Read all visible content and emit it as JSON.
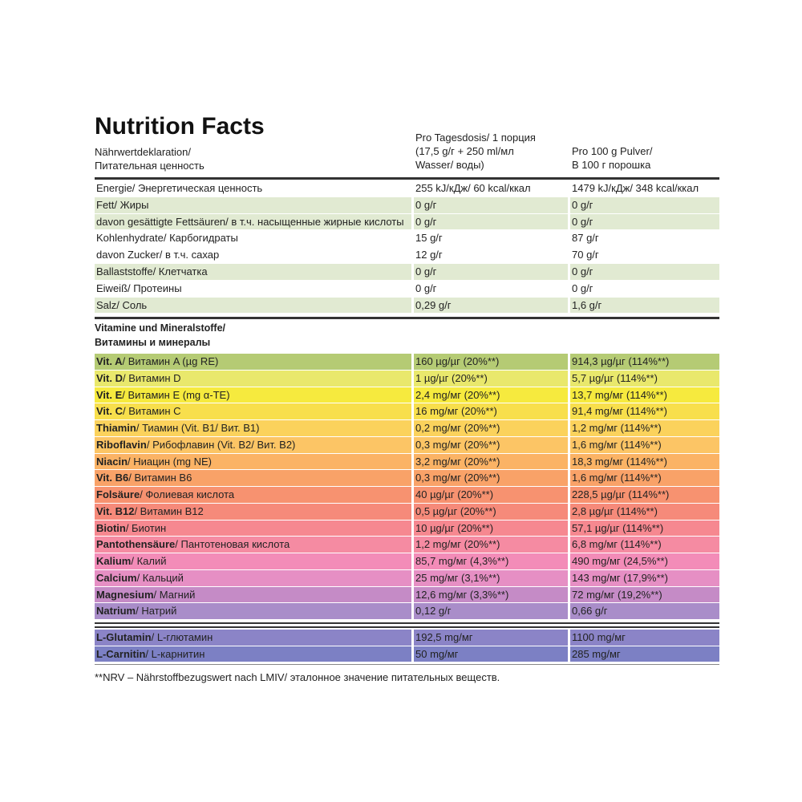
{
  "header": {
    "title": "Nutrition Facts",
    "label_de": "Nährwertdeklaration/",
    "label_ru": "Питательная ценность",
    "col1": [
      "Pro Tagesdosis/ 1 порция",
      "(17,5 g/г + 250 ml/мл",
      "Wasser/ воды)"
    ],
    "col2": [
      "Pro 100 g Pulver/",
      "В 100 г порошка"
    ]
  },
  "nutrients": [
    {
      "name": "Energie/ Энергетическая ценность",
      "per_serving": "255 kJ/кДж/ 60 kcal/ккал",
      "per_100g": "1479 kJ/кДж/ 348 kcal/ккал",
      "color": "#ffffff"
    },
    {
      "name": "Fett/ Жиры",
      "per_serving": "0 g/г",
      "per_100g": "0 g/г",
      "color": "#e1ead2"
    },
    {
      "name": "davon gesättigte Fettsäuren/ в т.ч. насыщенные жирные кислоты",
      "per_serving": "0 g/г",
      "per_100g": "0 g/г",
      "color": "#e1ead2"
    },
    {
      "name": "Kohlenhydrate/ Карбогидраты",
      "per_serving": "15 g/г",
      "per_100g": "87 g/г",
      "color": "#ffffff"
    },
    {
      "name": "davon Zucker/ в т.ч. сахар",
      "per_serving": "12 g/г",
      "per_100g": "70 g/г",
      "color": "#ffffff"
    },
    {
      "name": "Ballaststoffe/ Клетчатка",
      "per_serving": "0 g/г",
      "per_100g": "0 g/г",
      "color": "#e1ead2"
    },
    {
      "name": "Eiweiß/ Протеины",
      "per_serving": "0 g/г",
      "per_100g": "0 g/г",
      "color": "#ffffff"
    },
    {
      "name": "Salz/ Соль",
      "per_serving": "0,29 g/г",
      "per_100g": "1,6 g/г",
      "color": "#e1ead2"
    }
  ],
  "vitamins_header": [
    "Vitamine und Mineralstoffe/",
    "Витамины и минералы"
  ],
  "vitamins": [
    {
      "name_bold": "Vit. A",
      "name": "/ Витамин A (µg RE)",
      "per_serving": "160 µg/µг (20%**)",
      "per_100g": "914,3 µg/µг (114%**)",
      "color": "#b5cb74"
    },
    {
      "name_bold": "Vit. D",
      "name": "/ Витамин D",
      "per_serving": "1 µg/µг (20%**)",
      "per_100g": "5,7 µg/µг (114%**)",
      "color": "#e9e86c"
    },
    {
      "name_bold": "Vit. E",
      "name": "/ Витамин E (mg α-TE)",
      "per_serving": "2,4 mg/мг (20%**)",
      "per_100g": "13,7 mg/мг (114%**)",
      "color": "#f6ea3e"
    },
    {
      "name_bold": "Vit. C",
      "name": "/ Витамин C",
      "per_serving": "16 mg/мг (20%**)",
      "per_100g": "91,4 mg/мг (114%**)",
      "color": "#f8df4c"
    },
    {
      "name_bold": "Thiamin",
      "name": "/ Тиамин (Vit. B1/ Вит. B1)",
      "per_serving": "0,2 mg/мг (20%**)",
      "per_100g": "1,2 mg/мг (114%**)",
      "color": "#fbd25c"
    },
    {
      "name_bold": "Riboflavin",
      "name": "/ Рибофлавин (Vit. B2/ Вит. B2)",
      "per_serving": "0,3 mg/мг (20%**)",
      "per_100g": "1,6 mg/мг (114%**)",
      "color": "#fcc565"
    },
    {
      "name_bold": "Niacin",
      "name": "/ Ниацин (mg NE)",
      "per_serving": "3,2 mg/мг (20%**)",
      "per_100g": "18,3 mg/мг (114%**)",
      "color": "#fbb365"
    },
    {
      "name_bold": "Vit. B6",
      "name": "/ Витамин B6",
      "per_serving": "0,3 mg/мг (20%**)",
      "per_100g": "1,6 mg/мг (114%**)",
      "color": "#f9a268"
    },
    {
      "name_bold": "Folsäure",
      "name": "/ Фолиевая кислота",
      "per_serving": "40 µg/µг (20%**)",
      "per_100g": "228,5 µg/µг (114%**)",
      "color": "#f79270"
    },
    {
      "name_bold": "Vit. B12",
      "name": "/ Витамин B12",
      "per_serving": "0,5 µg/µг (20%**)",
      "per_100g": "2,8 µg/µг (114%**)",
      "color": "#f68a7a"
    },
    {
      "name_bold": "Biotin",
      "name": "/ Биотин",
      "per_serving": "10 µg/µг (20%**)",
      "per_100g": "57,1 µg/µг (114%**)",
      "color": "#f68890"
    },
    {
      "name_bold": "Pantothensäure",
      "name": "/ Пантотеновая кислота",
      "per_serving": "1,2 mg/мг (20%**)",
      "per_100g": "6,8 mg/мг (114%**)",
      "color": "#f58ba2"
    },
    {
      "name_bold": "Kalium",
      "name": "/ Калий",
      "per_serving": "85,7 mg/мг (4,3%**)",
      "per_100g": "490 mg/мг (24,5%**)",
      "color": "#f38cb8"
    },
    {
      "name_bold": "Calcium",
      "name": "/ Кальций",
      "per_serving": "25 mg/мг (3,1%**)",
      "per_100g": "143 mg/мг (17,9%**)",
      "color": "#e68fc4"
    },
    {
      "name_bold": "Magnesium",
      "name": "/ Магний",
      "per_serving": "12,6 mg/мг (3,3%**)",
      "per_100g": "72 mg/мг (19,2%**)",
      "color": "#c58bc6"
    },
    {
      "name_bold": "Natrium",
      "name": "/ Натрий",
      "per_serving": "0,12 g/г",
      "per_100g": "0,66 g/г",
      "color": "#a98dc9"
    }
  ],
  "amino_acids": [
    {
      "name_bold": "L-Glutamin",
      "name": "/ L-глютамин",
      "per_serving": "192,5 mg/мг",
      "per_100g": "1100 mg/мг",
      "color": "#8b84c7"
    },
    {
      "name_bold": "L-Carnitin",
      "name": "/ L-карнитин",
      "per_serving": "50 mg/мг",
      "per_100g": "285 mg/мг",
      "color": "#7c80c4"
    }
  ],
  "footnote": "**NRV – Nährstoffbezugswert nach LMIV/ эталонное значение питательных веществ."
}
